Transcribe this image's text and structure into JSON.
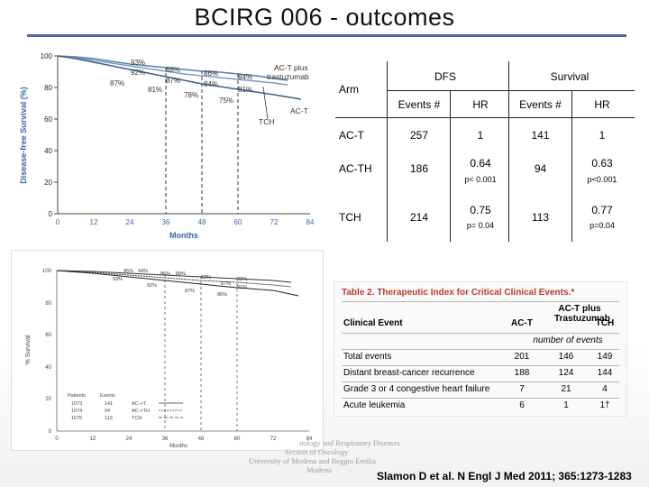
{
  "slide": {
    "title": "BCIRG 006 - outcomes",
    "citation": "Slamon D et al. N Engl J Med 2011; 365:1273-1283",
    "affiliation_lines": [
      "nology and Respiratory Diseases",
      "Section of Oncology",
      "University of Modena and Reggio Emilia",
      "Modena"
    ]
  },
  "km_top": {
    "ylabel": "Disease-free Survival (%)",
    "xlabel": "Months",
    "x_ticks": [
      "0",
      "12",
      "24",
      "36",
      "48",
      "60",
      "72",
      "84"
    ],
    "y_ticks": [
      "0",
      "20",
      "40",
      "60",
      "80",
      "100"
    ],
    "legend": [
      "AC-T plus",
      "trastuzumab",
      "TCH",
      "AC-T"
    ],
    "annotations": [
      "93%",
      "92%",
      "87%",
      "88%",
      "87%",
      "81%",
      "86%",
      "84%",
      "78%",
      "84%",
      "81%",
      "75%"
    ]
  },
  "km_bottom": {
    "ylabel": "% Survival",
    "xlabel": "Months",
    "x_ticks": [
      "0",
      "12",
      "24",
      "36",
      "48",
      "60",
      "72",
      "84"
    ],
    "y_ticks": [
      "0",
      "20",
      "40",
      "60",
      "80",
      "100"
    ],
    "legend_header": [
      "Patients",
      "Events"
    ],
    "legend_rows": [
      {
        "patients": "1073",
        "events": "141",
        "arm": "AC->T"
      },
      {
        "patients": "1074",
        "events": "94",
        "arm": "AC->TH"
      },
      {
        "patients": "1075",
        "events": "113",
        "arm": "TCH"
      }
    ],
    "annotations": [
      "95%",
      "94%",
      "93%",
      "92%",
      "86%",
      "89%",
      "87%",
      "83%",
      "92%",
      "91%",
      "86%",
      "87%"
    ]
  },
  "outcomes_table": {
    "header_arm": "Arm",
    "group_dfs": "DFS",
    "group_survival": "Survival",
    "col_events": "Events #",
    "col_hr": "HR",
    "rows": [
      {
        "arm": "AC-T",
        "dfs_events": "257",
        "dfs_hr": "1",
        "dfs_p": "",
        "os_events": "141",
        "os_hr": "1",
        "os_p": ""
      },
      {
        "arm": "AC-TH",
        "dfs_events": "186",
        "dfs_hr": "0.64",
        "dfs_p": "p< 0.001",
        "os_events": "94",
        "os_hr": "0.63",
        "os_p": "p<0.001"
      },
      {
        "arm": "TCH",
        "dfs_events": "214",
        "dfs_hr": "0.75",
        "dfs_p": "p= 0.04",
        "os_events": "113",
        "os_hr": "0.77",
        "os_p": "p=0.04"
      }
    ]
  },
  "therapeutic_index": {
    "caption": "Table 2. Therapeutic Index for Critical Clinical Events.*",
    "col_event": "Clinical Event",
    "col_act": "AC-T",
    "col_acth": "AC-T plus Trastuzumab",
    "col_tch": "TCH",
    "units": "number of events",
    "rows": [
      {
        "event": "Total events",
        "act": "201",
        "acth": "146",
        "tch": "149"
      },
      {
        "event": "Distant breast-cancer recurrence",
        "act": "188",
        "acth": "124",
        "tch": "144"
      },
      {
        "event": "Grade 3 or 4 congestive heart failure",
        "act": "7",
        "acth": "21",
        "tch": "4"
      },
      {
        "event": "Acute leukemia",
        "act": "6",
        "acth": "1",
        "tch": "1†"
      }
    ]
  },
  "colors": {
    "title_rule": "#4a6aa2",
    "km_lines": "#5a7fa8",
    "caption_red": "#c0392b"
  }
}
